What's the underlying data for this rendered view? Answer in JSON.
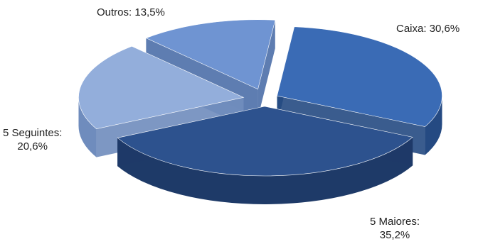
{
  "chart_data": {
    "type": "pie",
    "style": "3d-exploded",
    "title": "",
    "slices": [
      {
        "name": "Caixa",
        "value": 30.6,
        "label_line1": "Caixa: 30,6%",
        "label_line2": "",
        "color": "#3a6bb5",
        "side_color": "#254a82"
      },
      {
        "name": "5 Maiores",
        "value": 35.2,
        "label_line1": "5 Maiores:",
        "label_line2": "35,2%",
        "color": "#2d528e",
        "side_color": "#1e3a68"
      },
      {
        "name": "5 Seguintes",
        "value": 20.6,
        "label_line1": "5 Seguintes:",
        "label_line2": "20,6%",
        "color": "#93aedb",
        "side_color": "#6f8cbd"
      },
      {
        "name": "Outros",
        "value": 13.5,
        "label_line1": "Outros: 13,5%",
        "label_line2": "",
        "color": "#6f94d2",
        "side_color": "#4d6fa8"
      }
    ]
  }
}
